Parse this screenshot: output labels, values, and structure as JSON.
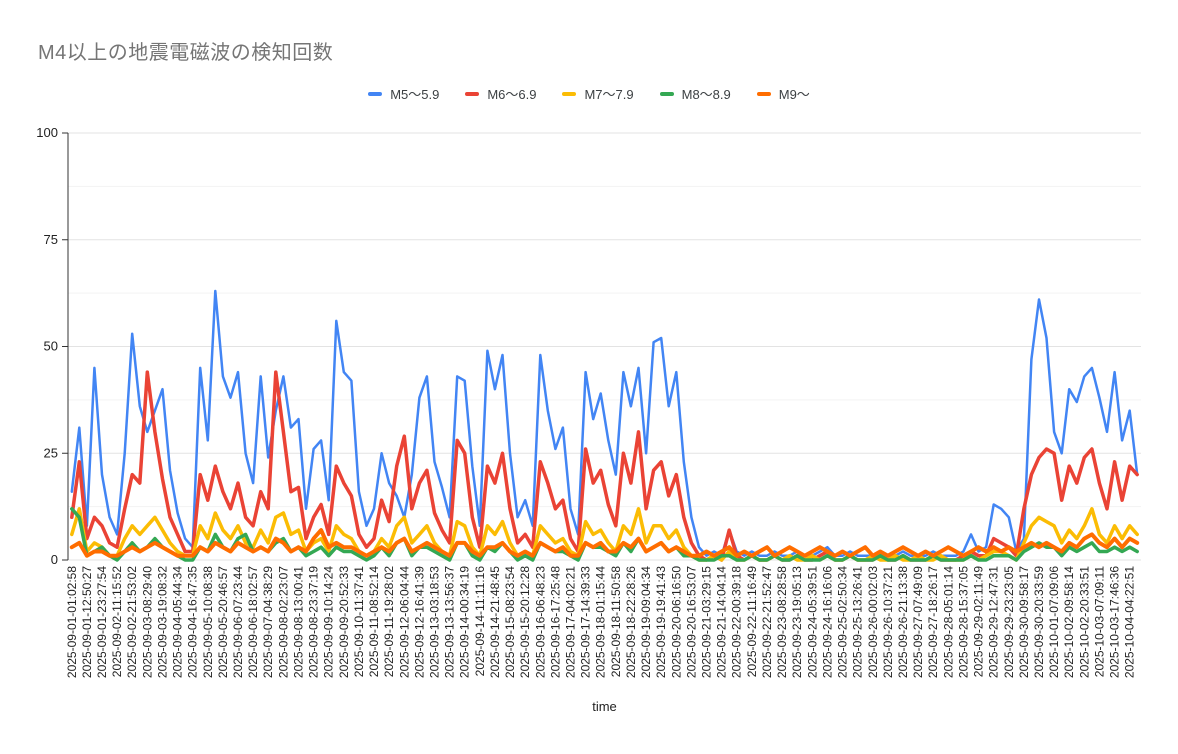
{
  "chart_data": {
    "type": "line",
    "title": "M4以上の地震電磁波の検知回数",
    "xlabel": "time",
    "ylabel": "",
    "ylim": [
      0,
      100
    ],
    "y_major_ticks": [
      0,
      25,
      50,
      75,
      100
    ],
    "y_minor_gridlines": [
      12.5,
      37.5,
      62.5,
      87.5
    ],
    "legend_position": "top",
    "grid": true,
    "points_per_label": 2,
    "x_tick_labels": [
      "2025-09-01-01:02:58",
      "2025-09-01-12:50:27",
      "2025-09-01-23:27:54",
      "2025-09-02-11:15:52",
      "2025-09-02-21:53:02",
      "2025-09-03-08:29:40",
      "2025-09-03-19:08:32",
      "2025-09-04-05:44:34",
      "2025-09-04-16:47:35",
      "2025-09-05-10:08:38",
      "2025-09-05-20:46:57",
      "2025-09-06-07:23:44",
      "2025-09-06-18:02:57",
      "2025-09-07-04:38:29",
      "2025-09-08-02:23:07",
      "2025-09-08-13:00:41",
      "2025-09-08-23:37:19",
      "2025-09-09-10:14:24",
      "2025-09-09-20:52:33",
      "2025-09-10-11:37:41",
      "2025-09-11-08:52:14",
      "2025-09-11-19:28:02",
      "2025-09-12-06:04:44",
      "2025-09-12-16:41:39",
      "2025-09-13-03:18:53",
      "2025-09-13-13:56:37",
      "2025-09-14-00:34:19",
      "2025-09-14-11:11:16",
      "2025-09-14-21:48:45",
      "2025-09-15-08:23:54",
      "2025-09-15-20:12:28",
      "2025-09-16-06:48:23",
      "2025-09-16-17:25:48",
      "2025-09-17-04:02:21",
      "2025-09-17-14:39:33",
      "2025-09-18-01:15:44",
      "2025-09-18-11:50:58",
      "2025-09-18-22:28:26",
      "2025-09-19-09:04:34",
      "2025-09-19-19:41:43",
      "2025-09-20-06:16:50",
      "2025-09-20-16:53:07",
      "2025-09-21-03:29:15",
      "2025-09-21-14:04:14",
      "2025-09-22-00:39:18",
      "2025-09-22-11:16:49",
      "2025-09-22-21:52:47",
      "2025-09-23-08:28:58",
      "2025-09-23-19:05:13",
      "2025-09-24-05:39:51",
      "2025-09-24-16:16:06",
      "2025-09-25-02:50:34",
      "2025-09-25-13:26:41",
      "2025-09-26-00:02:03",
      "2025-09-26-10:37:21",
      "2025-09-26-21:13:38",
      "2025-09-27-07:49:09",
      "2025-09-27-18:26:17",
      "2025-09-28-05:01:14",
      "2025-09-28-15:37:05",
      "2025-09-29-02:11:49",
      "2025-09-29-12:47:31",
      "2025-09-29-23:23:05",
      "2025-09-30-09:58:17",
      "2025-09-30-20:33:59",
      "2025-10-01-07:09:06",
      "2025-10-02-09:58:14",
      "2025-10-02-20:33:51",
      "2025-10-03-07:09:11",
      "2025-10-03-17:46:36",
      "2025-10-04-04:22:51"
    ],
    "series": [
      {
        "name": "M5～5.9",
        "color": "#4285F4",
        "values": [
          16,
          31,
          8,
          45,
          20,
          10,
          6,
          25,
          53,
          36,
          30,
          35,
          40,
          21,
          11,
          5,
          3,
          45,
          28,
          63,
          43,
          38,
          44,
          25,
          18,
          43,
          24,
          35,
          43,
          31,
          33,
          12,
          26,
          28,
          14,
          56,
          44,
          42,
          16,
          8,
          12,
          25,
          18,
          15,
          10,
          20,
          38,
          43,
          23,
          17,
          10,
          43,
          42,
          22,
          8,
          49,
          40,
          48,
          25,
          10,
          14,
          8,
          48,
          35,
          26,
          31,
          12,
          6,
          44,
          33,
          39,
          28,
          20,
          44,
          36,
          45,
          25,
          51,
          52,
          36,
          44,
          23,
          10,
          3,
          1,
          2,
          1,
          7,
          2,
          1,
          2,
          1,
          1,
          2,
          1,
          1,
          2,
          1,
          1,
          2,
          3,
          1,
          1,
          2,
          1,
          1,
          1,
          2,
          1,
          1,
          2,
          1,
          1,
          1,
          2,
          1,
          1,
          1,
          2,
          6,
          2,
          3,
          13,
          12,
          10,
          2,
          5,
          47,
          61,
          52,
          30,
          25,
          40,
          37,
          43,
          45,
          38,
          30,
          44,
          28,
          35,
          20
        ]
      },
      {
        "name": "M6～6.9",
        "color": "#EA4335",
        "values": [
          10,
          23,
          5,
          10,
          8,
          4,
          3,
          12,
          20,
          18,
          44,
          30,
          19,
          10,
          6,
          2,
          2,
          20,
          14,
          22,
          16,
          12,
          18,
          10,
          8,
          16,
          12,
          44,
          30,
          16,
          17,
          5,
          10,
          13,
          6,
          22,
          18,
          15,
          6,
          3,
          5,
          14,
          9,
          22,
          29,
          12,
          18,
          21,
          11,
          7,
          4,
          28,
          25,
          10,
          3,
          22,
          18,
          25,
          12,
          4,
          6,
          3,
          23,
          18,
          12,
          14,
          5,
          2,
          26,
          18,
          21,
          13,
          8,
          25,
          18,
          30,
          12,
          21,
          23,
          15,
          20,
          10,
          4,
          1,
          0,
          1,
          0,
          7,
          1,
          0,
          1,
          0,
          0,
          1,
          0,
          0,
          1,
          0,
          0,
          1,
          2,
          0,
          0,
          1,
          0,
          0,
          0,
          1,
          0,
          0,
          1,
          0,
          0,
          0,
          1,
          0,
          0,
          0,
          1,
          2,
          1,
          1,
          5,
          4,
          3,
          1,
          12,
          20,
          24,
          26,
          25,
          14,
          22,
          18,
          24,
          26,
          18,
          12,
          23,
          14,
          22,
          20
        ]
      },
      {
        "name": "M7～7.9",
        "color": "#FBBC04",
        "values": [
          6,
          12,
          2,
          4,
          3,
          1,
          1,
          5,
          8,
          6,
          8,
          10,
          7,
          4,
          2,
          1,
          1,
          8,
          5,
          11,
          7,
          5,
          8,
          4,
          3,
          7,
          4,
          10,
          11,
          6,
          7,
          2,
          4,
          5,
          2,
          8,
          6,
          5,
          2,
          1,
          2,
          5,
          3,
          8,
          10,
          4,
          6,
          8,
          4,
          2,
          1,
          9,
          8,
          3,
          1,
          8,
          6,
          9,
          4,
          1,
          2,
          1,
          8,
          6,
          4,
          5,
          2,
          1,
          9,
          6,
          7,
          4,
          2,
          8,
          6,
          12,
          4,
          8,
          8,
          5,
          7,
          3,
          1,
          0,
          0,
          1,
          0,
          2,
          0,
          0,
          1,
          0,
          0,
          1,
          0,
          1,
          0,
          0,
          1,
          0,
          1,
          0,
          0,
          1,
          0,
          0,
          1,
          0,
          0,
          1,
          0,
          0,
          1,
          0,
          0,
          1,
          0,
          0,
          0,
          1,
          0,
          1,
          2,
          2,
          1,
          0,
          4,
          8,
          10,
          9,
          8,
          4,
          7,
          5,
          8,
          12,
          6,
          4,
          8,
          5,
          8,
          6
        ]
      },
      {
        "name": "M8～8.9",
        "color": "#34A853",
        "values": [
          12,
          10,
          1,
          2,
          3,
          1,
          0,
          2,
          4,
          2,
          3,
          5,
          3,
          2,
          1,
          0,
          0,
          3,
          2,
          6,
          3,
          2,
          5,
          6,
          2,
          3,
          2,
          4,
          5,
          2,
          3,
          1,
          2,
          3,
          1,
          3,
          2,
          2,
          1,
          0,
          1,
          3,
          1,
          4,
          5,
          1,
          3,
          3,
          2,
          1,
          0,
          4,
          4,
          1,
          0,
          3,
          2,
          4,
          2,
          0,
          1,
          0,
          4,
          3,
          2,
          2,
          1,
          0,
          4,
          3,
          3,
          2,
          1,
          4,
          2,
          5,
          2,
          3,
          4,
          2,
          3,
          1,
          1,
          0,
          0,
          0,
          1,
          1,
          0,
          0,
          1,
          0,
          0,
          1,
          0,
          0,
          1,
          0,
          0,
          0,
          1,
          0,
          0,
          1,
          0,
          0,
          0,
          1,
          0,
          0,
          1,
          0,
          0,
          0,
          1,
          0,
          0,
          0,
          0,
          1,
          0,
          0,
          1,
          1,
          1,
          0,
          2,
          3,
          4,
          3,
          3,
          1,
          3,
          2,
          3,
          4,
          2,
          2,
          3,
          2,
          3,
          2
        ]
      },
      {
        "name": "M9～",
        "color": "#FF6D00",
        "values": [
          3,
          4,
          1,
          2,
          2,
          1,
          1,
          2,
          3,
          2,
          3,
          4,
          3,
          2,
          1,
          1,
          1,
          3,
          2,
          4,
          3,
          2,
          4,
          3,
          2,
          3,
          2,
          5,
          4,
          2,
          3,
          2,
          5,
          7,
          3,
          4,
          3,
          3,
          2,
          1,
          2,
          3,
          2,
          4,
          5,
          2,
          3,
          4,
          3,
          2,
          1,
          4,
          4,
          2,
          1,
          3,
          3,
          4,
          2,
          1,
          2,
          1,
          4,
          3,
          2,
          3,
          1,
          1,
          4,
          3,
          4,
          2,
          2,
          4,
          3,
          5,
          2,
          3,
          4,
          2,
          3,
          2,
          1,
          1,
          2,
          1,
          2,
          3,
          1,
          2,
          1,
          2,
          3,
          1,
          2,
          3,
          2,
          1,
          2,
          3,
          2,
          1,
          2,
          1,
          2,
          3,
          1,
          2,
          1,
          2,
          3,
          2,
          1,
          2,
          1,
          2,
          3,
          2,
          1,
          2,
          3,
          2,
          3,
          2,
          3,
          2,
          3,
          4,
          3,
          4,
          3,
          2,
          4,
          3,
          5,
          6,
          4,
          3,
          5,
          3,
          5,
          4
        ]
      }
    ]
  }
}
